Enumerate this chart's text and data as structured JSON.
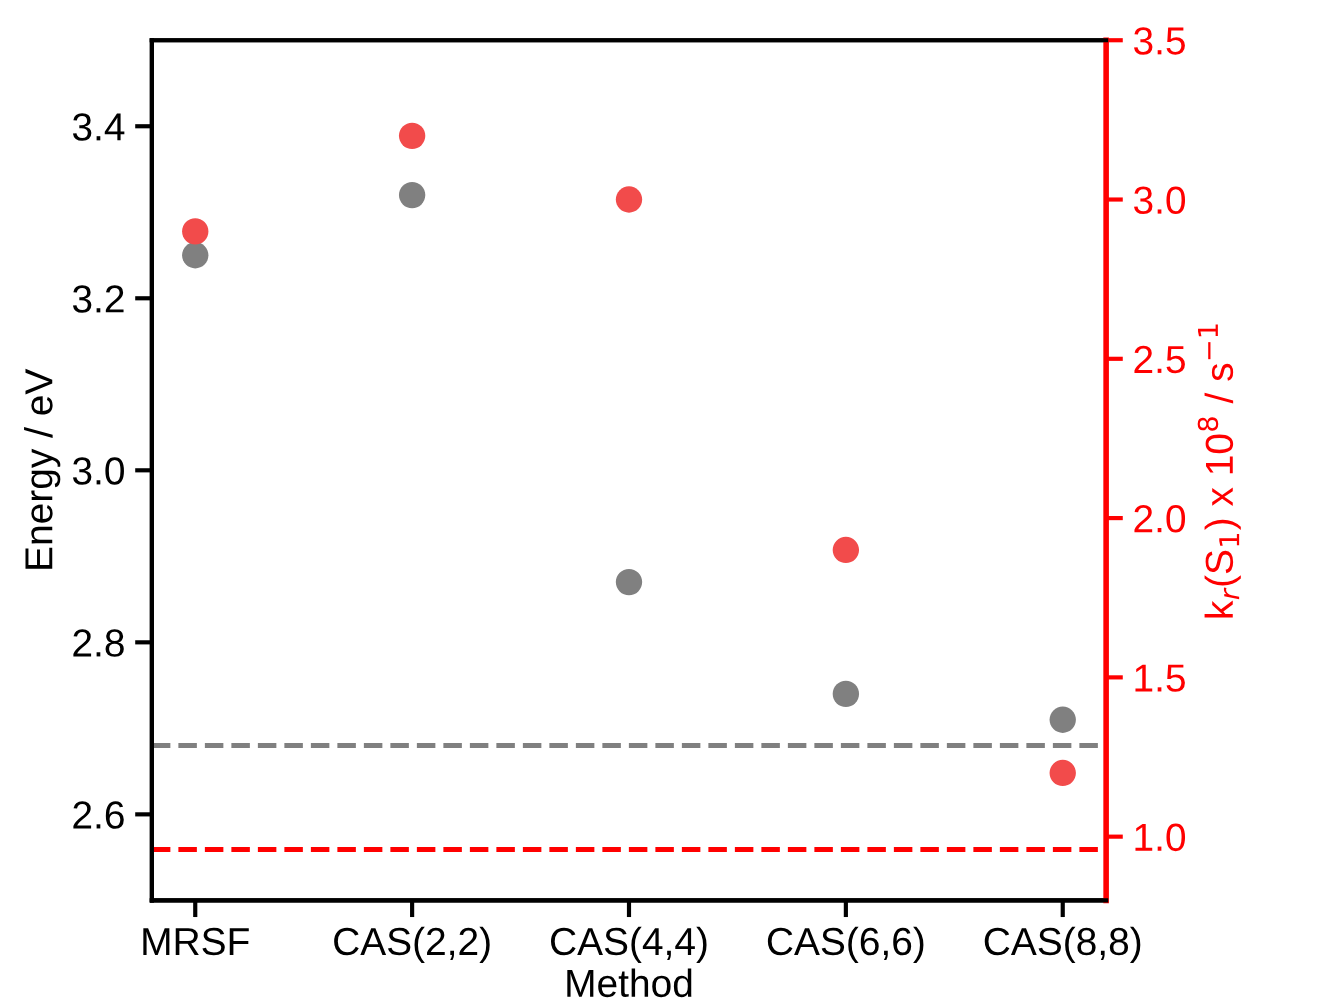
{
  "chart_data": {
    "type": "scatter",
    "xlabel": "Method",
    "ylabel": "Energy / eV",
    "y2label": "k$_{r}$(S$_{1}$) x 10$^{8}$ / s$^{−1}$",
    "categories": [
      "MRSF",
      "CAS(2,2)",
      "CAS(4,4)",
      "CAS(6,6)",
      "CAS(8,8)"
    ],
    "series": [
      {
        "color": "#808080",
        "values": [
          3.25,
          3.32,
          2.87,
          2.74,
          2.71
        ]
      },
      {
        "color": "#f24b4b",
        "axis": "y2",
        "values": [
          2.9,
          3.2,
          3.0,
          1.9,
          1.2
        ]
      }
    ],
    "ylim": [
      2.5,
      3.5
    ],
    "yticks": [
      2.6,
      2.8,
      {
        "value": 3,
        "label": "3.0"
      },
      3.2,
      3.4
    ],
    "y2lim": [
      0.8,
      3.5
    ],
    "y2ticks": [
      {
        "value": 1,
        "label": "1.0"
      },
      1.5,
      {
        "value": 2,
        "label": "2.0"
      },
      2.5,
      {
        "value": 3,
        "label": "3.0"
      },
      3.5
    ],
    "ref_lines": [
      {
        "axis": "y",
        "value": 2.68,
        "color": "#808080",
        "line_style": "dashed"
      },
      {
        "axis": "y2",
        "value": 0.96,
        "color": "#ff0000",
        "line_style": "dashed"
      }
    ],
    "grid": false,
    "legend": false,
    "marker": "circle"
  }
}
